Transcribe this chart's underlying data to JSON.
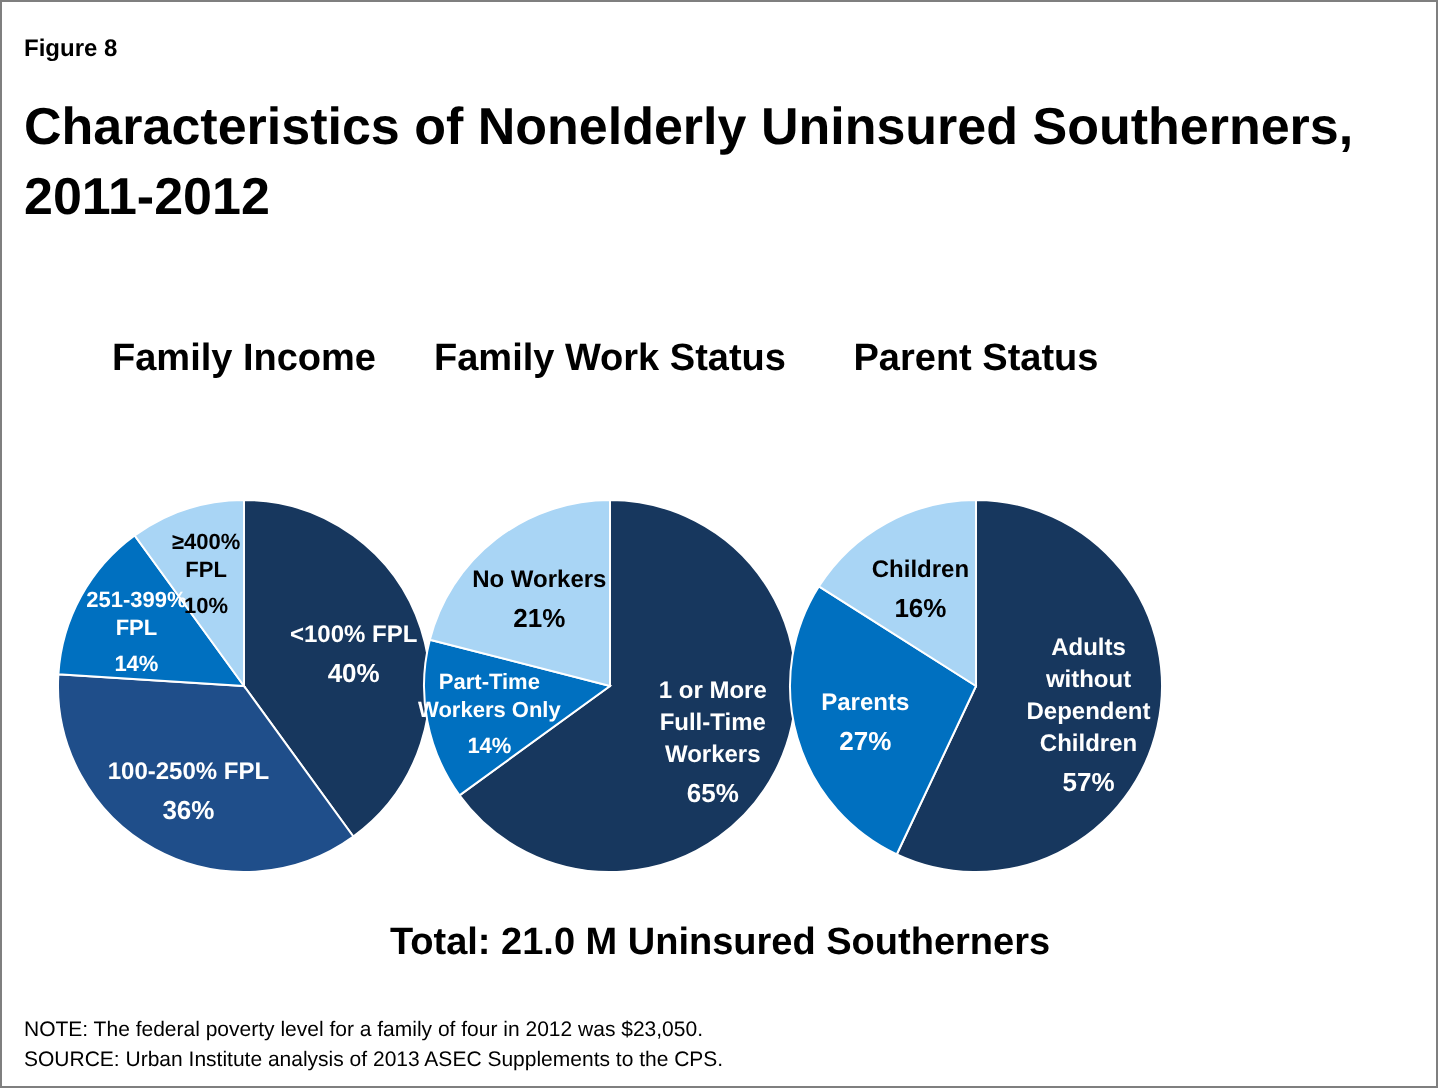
{
  "chart_data": [
    {
      "type": "other",
      "title": "Characteristics of Nonelderly Uninsured Southerners,\n2011-2012",
      "annotations": [
        "Figure 8",
        "Total: 21.0 M Uninsured Southerners",
        "NOTE: The federal poverty level for a family of four in 2012 was $23,050.",
        "SOURCE: Urban Institute analysis of 2013 ASEC Supplements to the CPS."
      ]
    },
    {
      "type": "pie",
      "title": "Family Income",
      "categories": [
        "<100% FPL",
        "100-250% FPL",
        "251-399%\nFPL",
        "≥400%\nFPL"
      ],
      "values": [
        40,
        36,
        14,
        10
      ],
      "colors": [
        "#17375e",
        "#1f4e8a",
        "#0070c0",
        "#a9d5f5"
      ],
      "value_labels": [
        "40%",
        "36%",
        "14%",
        "10%"
      ]
    },
    {
      "type": "pie",
      "title": "Family Work Status",
      "categories": [
        "1 or More\nFull-Time\nWorkers",
        "Part-Time\nWorkers Only",
        "No Workers"
      ],
      "values": [
        65,
        14,
        21
      ],
      "colors": [
        "#17375e",
        "#0070c0",
        "#a9d5f5"
      ],
      "value_labels": [
        "65%",
        "14%",
        "21%"
      ]
    },
    {
      "type": "pie",
      "title": "Parent Status",
      "categories": [
        "Adults\nwithout\nDependent\nChildren",
        "Parents",
        "Children"
      ],
      "values": [
        57,
        27,
        16
      ],
      "colors": [
        "#17375e",
        "#0070c0",
        "#a9d5f5"
      ],
      "value_labels": [
        "57%",
        "27%",
        "16%"
      ]
    }
  ]
}
